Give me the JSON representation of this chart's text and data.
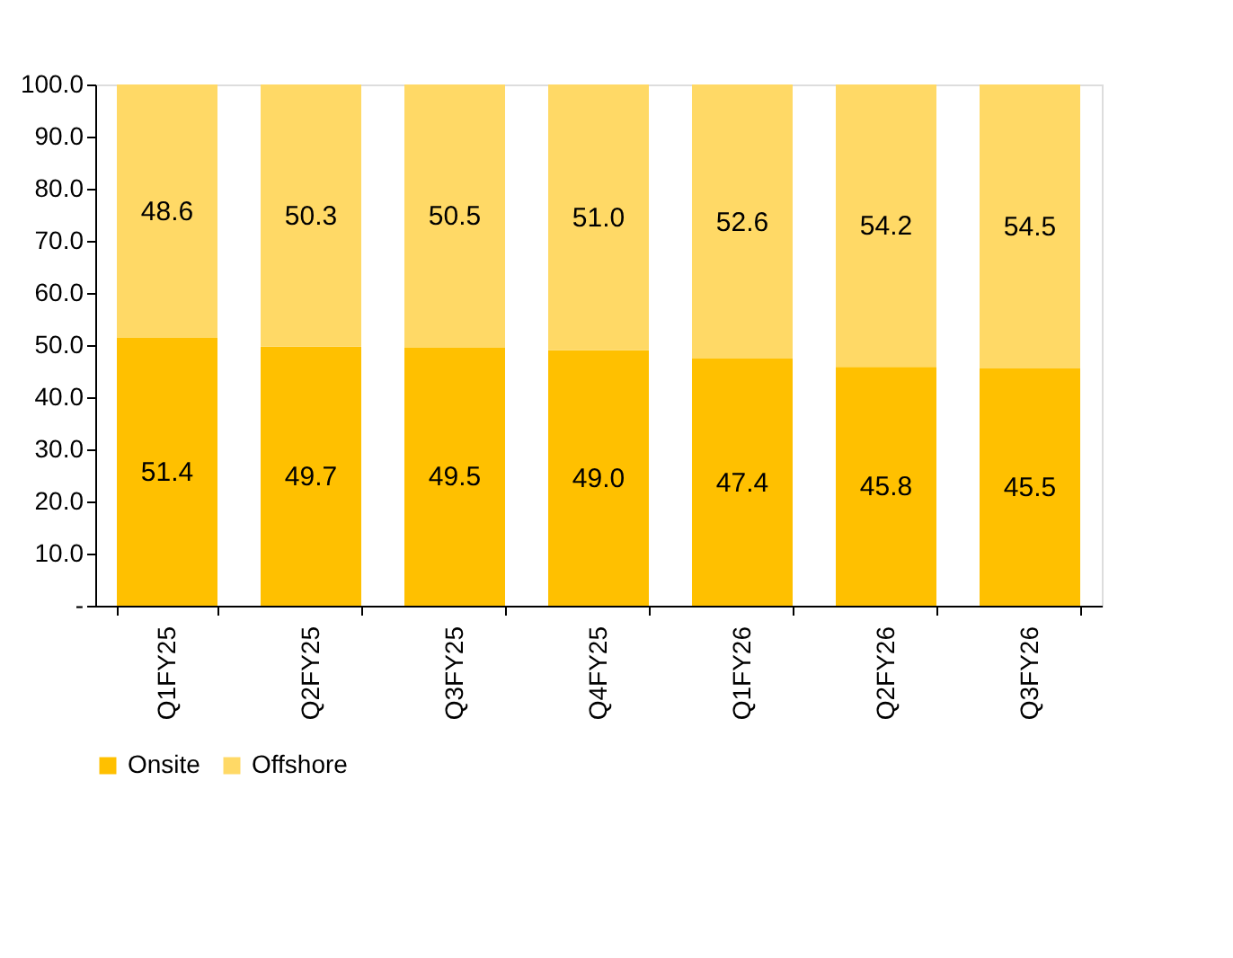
{
  "chart_data": {
    "type": "bar",
    "stacked": true,
    "legend": "bottom left",
    "grid": false,
    "categories": [
      "Q1FY25",
      "Q2FY25",
      "Q3FY25",
      "Q4FY25",
      "Q1FY26",
      "Q2FY26",
      "Q3FY26"
    ],
    "series": [
      {
        "name": "Onsite",
        "color": "#ffc000",
        "values": [
          51.4,
          49.7,
          49.5,
          49.0,
          47.4,
          45.8,
          45.5
        ],
        "value_labels": [
          "51.4",
          "49.7",
          "49.5",
          "49.0",
          "47.4",
          "45.8",
          "45.5"
        ]
      },
      {
        "name": "Offshore",
        "color": "#ffd966",
        "values": [
          48.6,
          50.3,
          50.5,
          51.0,
          52.6,
          54.2,
          54.5
        ],
        "value_labels": [
          "48.6",
          "50.3",
          "50.5",
          "51.0",
          "52.6",
          "54.2",
          "54.5"
        ]
      }
    ],
    "ylim": [
      0,
      100
    ],
    "yticks": [
      {
        "value": 0,
        "label": "-"
      },
      {
        "value": 10,
        "label": "10.0"
      },
      {
        "value": 20,
        "label": "20.0"
      },
      {
        "value": 30,
        "label": "30.0"
      },
      {
        "value": 40,
        "label": "40.0"
      },
      {
        "value": 50,
        "label": "50.0"
      },
      {
        "value": 60,
        "label": "60.0"
      },
      {
        "value": 70,
        "label": "70.0"
      },
      {
        "value": 80,
        "label": "80.0"
      },
      {
        "value": 90,
        "label": "90.0"
      },
      {
        "value": 100,
        "label": "100.0"
      }
    ]
  }
}
